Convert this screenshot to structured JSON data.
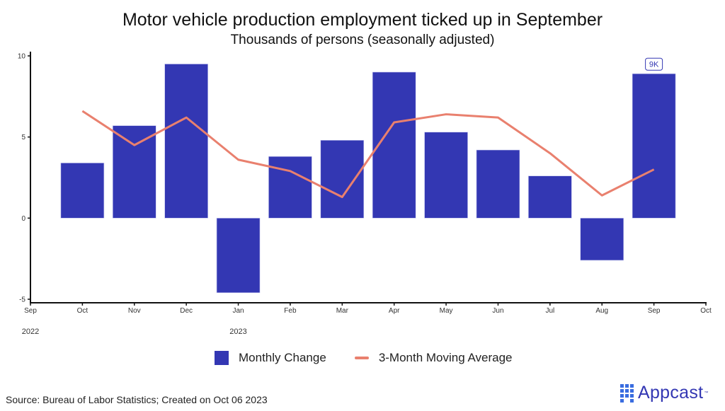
{
  "chart_data": {
    "type": "bar",
    "title": "Motor vehicle production employment ticked up in September",
    "subtitle": "Thousands of persons (seasonally adjusted)",
    "xlabel": "",
    "ylabel": "",
    "ylim": [
      -5,
      10
    ],
    "yticks": [
      -5,
      0,
      5,
      10
    ],
    "ytick_labels": [
      "-5",
      "0",
      "5",
      "10"
    ],
    "x_ticks": [
      "Sep",
      "Oct",
      "Nov",
      "Dec",
      "Jan",
      "Feb",
      "Mar",
      "Apr",
      "May",
      "Jun",
      "Jul",
      "Aug",
      "Sep",
      "Oct"
    ],
    "year_labels": [
      {
        "label": "2022",
        "at_tick": 0
      },
      {
        "label": "2023",
        "at_tick": 4
      }
    ],
    "categories": [
      "Oct",
      "Nov",
      "Dec",
      "Jan",
      "Feb",
      "Mar",
      "Apr",
      "May",
      "Jun",
      "Jul",
      "Aug",
      "Sep"
    ],
    "series": [
      {
        "name": "Monthly Change",
        "type": "bar",
        "color": "#3337b3",
        "values": [
          3.4,
          5.7,
          9.5,
          -4.6,
          3.8,
          4.8,
          9.0,
          5.3,
          4.2,
          2.6,
          -2.6,
          8.9
        ]
      },
      {
        "name": "3-Month Moving Average",
        "type": "line",
        "color": "#e9806e",
        "values": [
          6.6,
          4.5,
          6.2,
          3.6,
          2.9,
          1.3,
          5.9,
          6.4,
          6.2,
          4.0,
          1.4,
          3.0
        ]
      }
    ],
    "annotations": [
      {
        "category": "Sep",
        "series": "Monthly Change",
        "text": "9K"
      }
    ],
    "grid": false,
    "legend": "bottom-center"
  },
  "legend": {
    "bar_label": "Monthly Change",
    "line_label": "3-Month Moving Average"
  },
  "footer": {
    "source": "Source: Bureau of Labor Statistics; Created on Oct 06 2023",
    "logo_text": "Appcast",
    "logo_tm": "™"
  },
  "colors": {
    "bar": "#3337b3",
    "line": "#e9806e",
    "annotation_border": "#3337b3",
    "logo": "#3337b3"
  }
}
